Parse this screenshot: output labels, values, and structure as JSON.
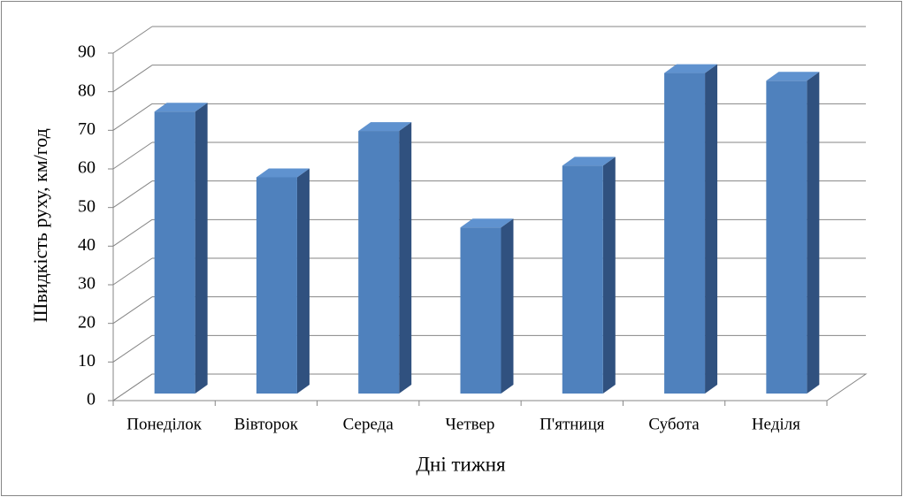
{
  "chart_data": {
    "type": "bar3d",
    "x_label": "Дні тижня",
    "y_label": "Швидкість руху, км/год",
    "categories": [
      "Понеділок",
      "Вівторок",
      "Середа",
      "Четвер",
      "П'ятниця",
      "Субота",
      "Неділя"
    ],
    "values": [
      73,
      56,
      68,
      43,
      59,
      83,
      81
    ],
    "color": "#4f81bd",
    "side_color": "#30517f",
    "top_color": "#5f92cf",
    "ylim": [
      0,
      90
    ],
    "yticks": [
      0,
      10,
      20,
      30,
      40,
      50,
      60,
      70,
      80,
      90
    ],
    "grid": true
  }
}
